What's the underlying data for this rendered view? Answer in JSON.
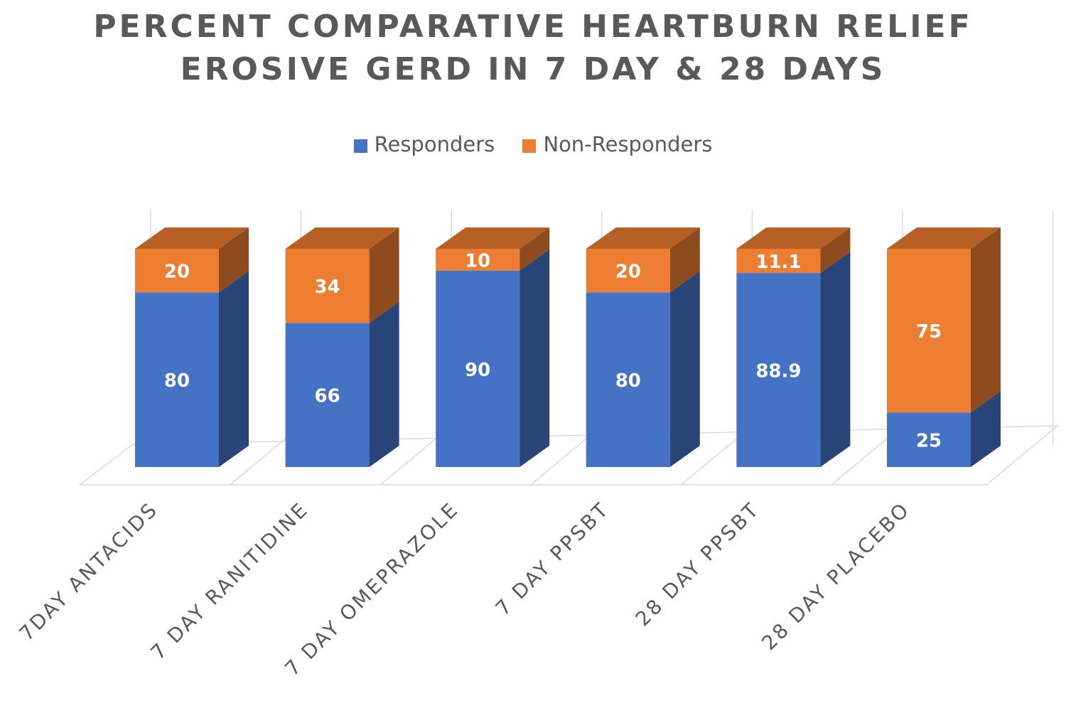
{
  "chart_data": {
    "type": "bar",
    "stacked": true,
    "stacked_percent": true,
    "three_d": true,
    "title_lines": [
      "PERCENT COMPARATIVE HEARTBURN RELIEF",
      "EROSIVE GERD IN 7 DAY & 28 DAYS"
    ],
    "categories": [
      "7DAY ANTACIDS",
      "7 DAY RANITIDINE",
      "7 DAY OMEPRAZOLE",
      "7 DAY PPSBT",
      "28 DAY PPSBT",
      "28 DAY PLACEBO"
    ],
    "series": [
      {
        "name": "Responders",
        "values": [
          80,
          66,
          90,
          80,
          88.9,
          25
        ],
        "labels": [
          "80",
          "66",
          "90",
          "80",
          "88.9",
          "25"
        ],
        "color": "#4472C4"
      },
      {
        "name": "Non-Responders",
        "values": [
          20,
          34,
          10,
          20,
          11.1,
          75
        ],
        "labels": [
          "20",
          "34",
          "10",
          "20",
          "11.1",
          "75"
        ],
        "color": "#ED7D31"
      }
    ],
    "legend_position": "top",
    "grid": true
  }
}
